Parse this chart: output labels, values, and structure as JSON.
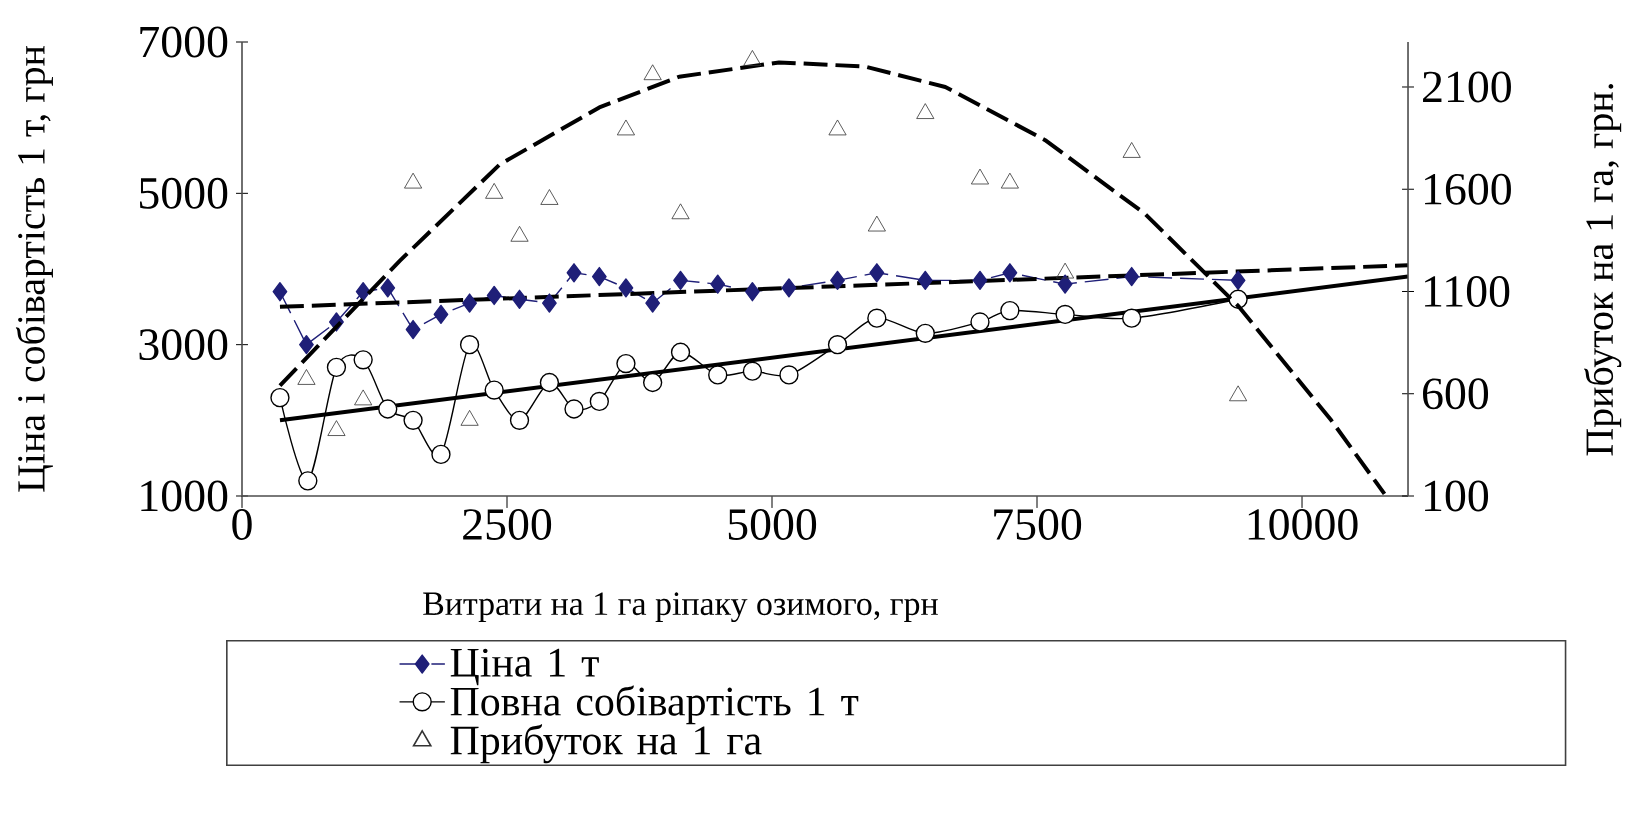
{
  "chart_data": {
    "type": "line",
    "xlabel": "Витрати на 1 га ріпаку озимого, грн",
    "ylabel": "Ціна і собівартість 1 т, грн",
    "y2label": "Прибуток на 1 га, грн.",
    "xlim": [
      0,
      11000
    ],
    "xticks": [
      0,
      2500,
      5000,
      7500,
      10000
    ],
    "ylim": [
      1000,
      7000
    ],
    "yticks": [
      1000,
      3000,
      5000,
      7000
    ],
    "y2lim": [
      100,
      2320
    ],
    "y2ticks": [
      100,
      600,
      1100,
      1600,
      2100
    ],
    "legend": "bottom",
    "grid": false,
    "series": [
      {
        "name": "Ціна 1 т",
        "color": "#1f1f78",
        "marker": "diamond",
        "line_style": "dashed",
        "x": [
          358,
          608,
          891,
          1143,
          1375,
          1614,
          1877,
          2147,
          2379,
          2618,
          2900,
          3132,
          3371,
          3622,
          3874,
          4137,
          4488,
          4815,
          5160,
          5618,
          5989,
          6446,
          6962,
          7244,
          7765,
          8393,
          9397
        ],
        "values": [
          3700,
          3000,
          3300,
          3700,
          3750,
          3200,
          3400,
          3550,
          3650,
          3600,
          3550,
          3950,
          3900,
          3750,
          3550,
          3850,
          3800,
          3700,
          3750,
          3850,
          3950,
          3850,
          3850,
          3950,
          3800,
          3900,
          3850
        ]
      },
      {
        "name": "Повна собівартість 1 т",
        "color": "#000000",
        "marker": "circle",
        "line_style": "solid",
        "x": [
          358,
          621,
          891,
          1143,
          1375,
          1614,
          1877,
          2147,
          2379,
          2618,
          2900,
          3132,
          3371,
          3622,
          3874,
          4137,
          4488,
          4815,
          5160,
          5618,
          5989,
          6446,
          6962,
          7244,
          7765,
          8393,
          9397
        ],
        "values": [
          2300,
          1200,
          2700,
          2800,
          2150,
          2000,
          1550,
          3000,
          2400,
          2000,
          2500,
          2150,
          2250,
          2750,
          2500,
          2900,
          2600,
          2650,
          2600,
          3000,
          3350,
          3150,
          3300,
          3450,
          3400,
          3350,
          3600
        ]
      },
      {
        "name": "Прибуток на 1 га",
        "type": "scatter",
        "axis": "y2",
        "color": "#333333",
        "marker": "triangle",
        "x": [
          608,
          891,
          1143,
          1614,
          2147,
          2379,
          2618,
          2900,
          3622,
          3874,
          4137,
          4815,
          5618,
          5989,
          6446,
          6962,
          7244,
          7765,
          8393,
          9397
        ],
        "values": [
          670,
          420,
          570,
          1630,
          470,
          1580,
          1370,
          1550,
          1890,
          2160,
          1480,
          2230,
          1890,
          1420,
          1970,
          1650,
          1630,
          1190,
          1780,
          590
        ]
      },
      {
        "color": "#000000",
        "marker": "none",
        "line_style": "dashed",
        "x": [
          358,
          11000
        ],
        "values": [
          3500,
          4050
        ]
      },
      {
        "color": "#000000",
        "marker": "none",
        "line_style": "solid",
        "x": [
          358,
          11000
        ],
        "values": [
          2000,
          3900
        ]
      },
      {
        "axis": "y2",
        "color": "#000000",
        "marker": "none",
        "line_style": "dashed",
        "x": [
          358,
          1488,
          2429,
          3371,
          4124,
          5066,
          5876,
          6635,
          7577,
          8518,
          9397,
          10276,
          10778
        ],
        "values": [
          640,
          1250,
          1720,
          2000,
          2150,
          2220,
          2200,
          2100,
          1840,
          1480,
          1030,
          470,
          110
        ]
      }
    ]
  }
}
